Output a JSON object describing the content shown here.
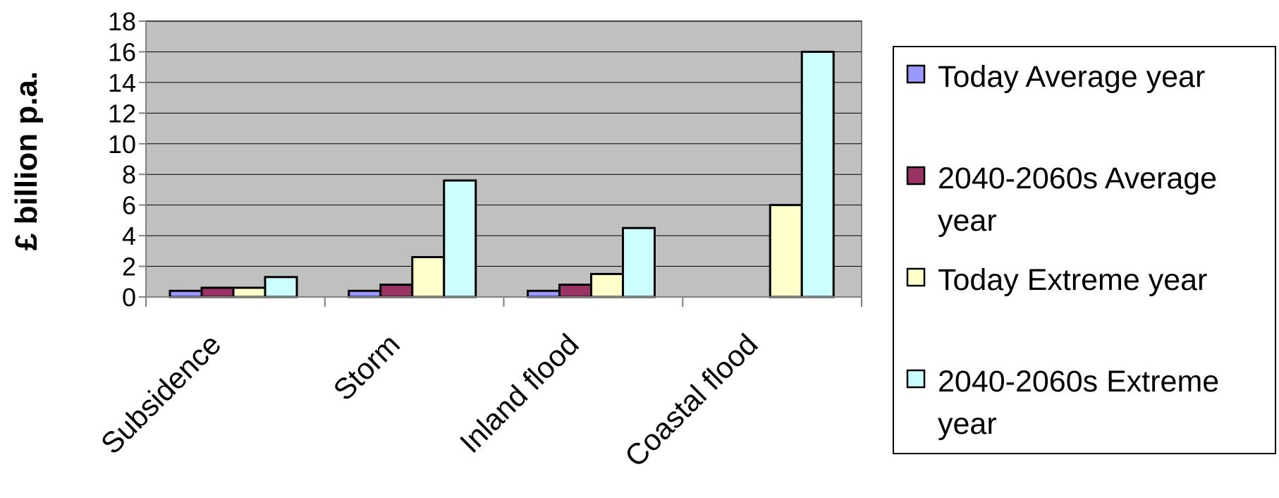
{
  "chart_data": {
    "type": "bar",
    "title": "",
    "xlabel": "",
    "ylabel": "£ billion p.a.",
    "ylim": [
      0,
      18
    ],
    "yticks": [
      0,
      2,
      4,
      6,
      8,
      10,
      12,
      14,
      16,
      18
    ],
    "grid": true,
    "legend_position": "right",
    "categories": [
      "Subsidence",
      "Storm",
      "Inland flood",
      "Coastal flood"
    ],
    "series": [
      {
        "name": "Today Average year",
        "color": "#9999ff",
        "values": [
          0.4,
          0.4,
          0.4,
          null
        ]
      },
      {
        "name": "2040-2060s Average year",
        "color": "#993366",
        "values": [
          0.6,
          0.8,
          0.8,
          null
        ]
      },
      {
        "name": "Today Extreme year",
        "color": "#ffffcc",
        "values": [
          0.6,
          2.6,
          1.5,
          6.0
        ]
      },
      {
        "name": "2040-2060s Extreme year",
        "color": "#ccffff",
        "values": [
          1.3,
          7.6,
          4.5,
          16.0
        ]
      }
    ],
    "legend_lines": [
      [
        "Today  Average year"
      ],
      [
        "2040-2060s  Average",
        "year"
      ],
      [
        "Today  Extreme year"
      ],
      [
        "2040-2060s  Extreme",
        "year"
      ]
    ],
    "plot_bg": "#c0c0c0"
  }
}
